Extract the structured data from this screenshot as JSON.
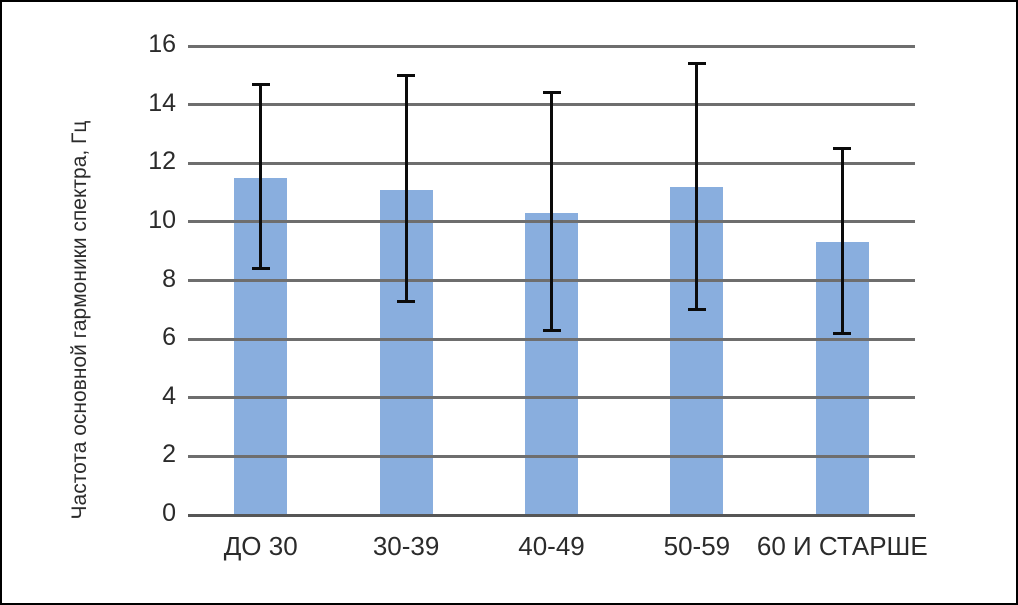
{
  "chart_data": {
    "type": "bar",
    "title": "",
    "xlabel": "",
    "ylabel": "Частота основной гармоники спектра, Гц",
    "categories": [
      "ДО 30",
      "30-39",
      "40-49",
      "50-59",
      "60 И СТАРШЕ"
    ],
    "series": [
      {
        "name": "Частота основной гармоники спектра",
        "values": [
          11.5,
          11.1,
          10.3,
          11.2,
          9.3
        ],
        "error_low": [
          8.4,
          7.3,
          6.3,
          7.0,
          6.2
        ],
        "error_high": [
          14.7,
          15.0,
          14.4,
          15.4,
          12.5
        ]
      }
    ],
    "yticks": [
      0,
      2,
      4,
      6,
      8,
      10,
      12,
      14,
      16
    ],
    "ylim": [
      0,
      16
    ],
    "grid": true,
    "legend_position": "none",
    "bar_color": "#89AEDE",
    "gridline_color": "#6e6e6e",
    "error_bar_color": "#0b0b0b"
  }
}
